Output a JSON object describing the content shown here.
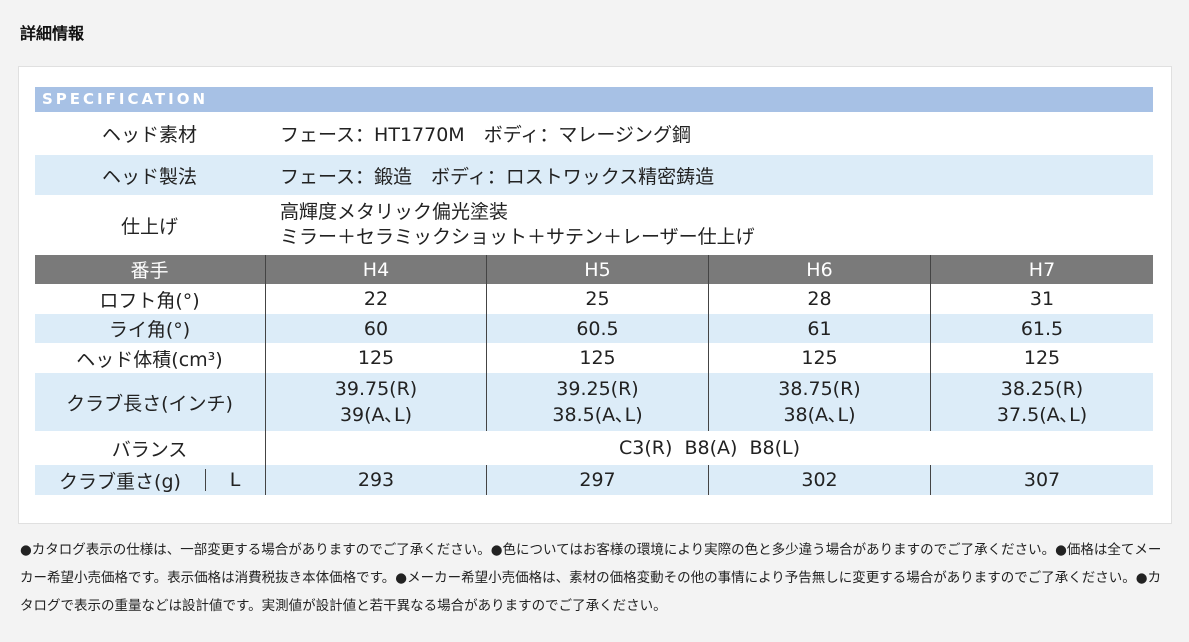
{
  "section_title": "詳細情報",
  "spec_header": "SPECIFICATION",
  "info_rows": [
    {
      "label": "ヘッド素材",
      "lines": [
        "フェース：HT1770M　ボディ：マレージング鋼"
      ]
    },
    {
      "label": "ヘッド製法",
      "lines": [
        "フェース：鍛造　ボディ：ロストワックス精密鋳造"
      ]
    },
    {
      "label": "仕上げ",
      "lines": [
        "高輝度メタリック偏光塗装",
        "ミラー＋セラミックショット＋サテン＋レーザー仕上げ"
      ]
    }
  ],
  "table": {
    "header_label": "番手",
    "columns": [
      "H4",
      "H5",
      "H6",
      "H7"
    ],
    "loft": {
      "label": "ロフト角(°)",
      "values": [
        "22",
        "25",
        "28",
        "31"
      ]
    },
    "lie": {
      "label": "ライ角(°)",
      "values": [
        "60",
        "60.5",
        "61",
        "61.5"
      ]
    },
    "volume": {
      "label": "ヘッド体積(cm³)",
      "values": [
        "125",
        "125",
        "125",
        "125"
      ]
    },
    "length": {
      "label": "クラブ長さ(インチ)",
      "values": [
        [
          "39.75(R)",
          "39(A､L)"
        ],
        [
          "39.25(R)",
          "38.5(A､L)"
        ],
        [
          "38.75(R)",
          "38(A､L)"
        ],
        [
          "38.25(R)",
          "37.5(A､L)"
        ]
      ]
    },
    "balance": {
      "label": "バランス",
      "value": "C3(R)  B8(A)  B8(L)"
    },
    "weight": {
      "label": "クラブ重さ(g)",
      "flex": "L",
      "values": [
        "293",
        "297",
        "302",
        "307"
      ]
    }
  },
  "notes": "●カタログ表示の仕様は、一部変更する場合がありますのでご了承ください。●色についてはお客様の環境により実際の色と多少違う場合がありますのでご了承ください。●価格は全てメーカー希望小売価格です。表示価格は消費税抜き本体価格です。●メーカー希望小売価格は、素材の価格変動その他の事情により予告無しに変更する場合がありますのでご了承ください。●カタログで表示の重量などは設計値です。実測値が設計値と若干異なる場合がありますのでご了承ください。"
}
